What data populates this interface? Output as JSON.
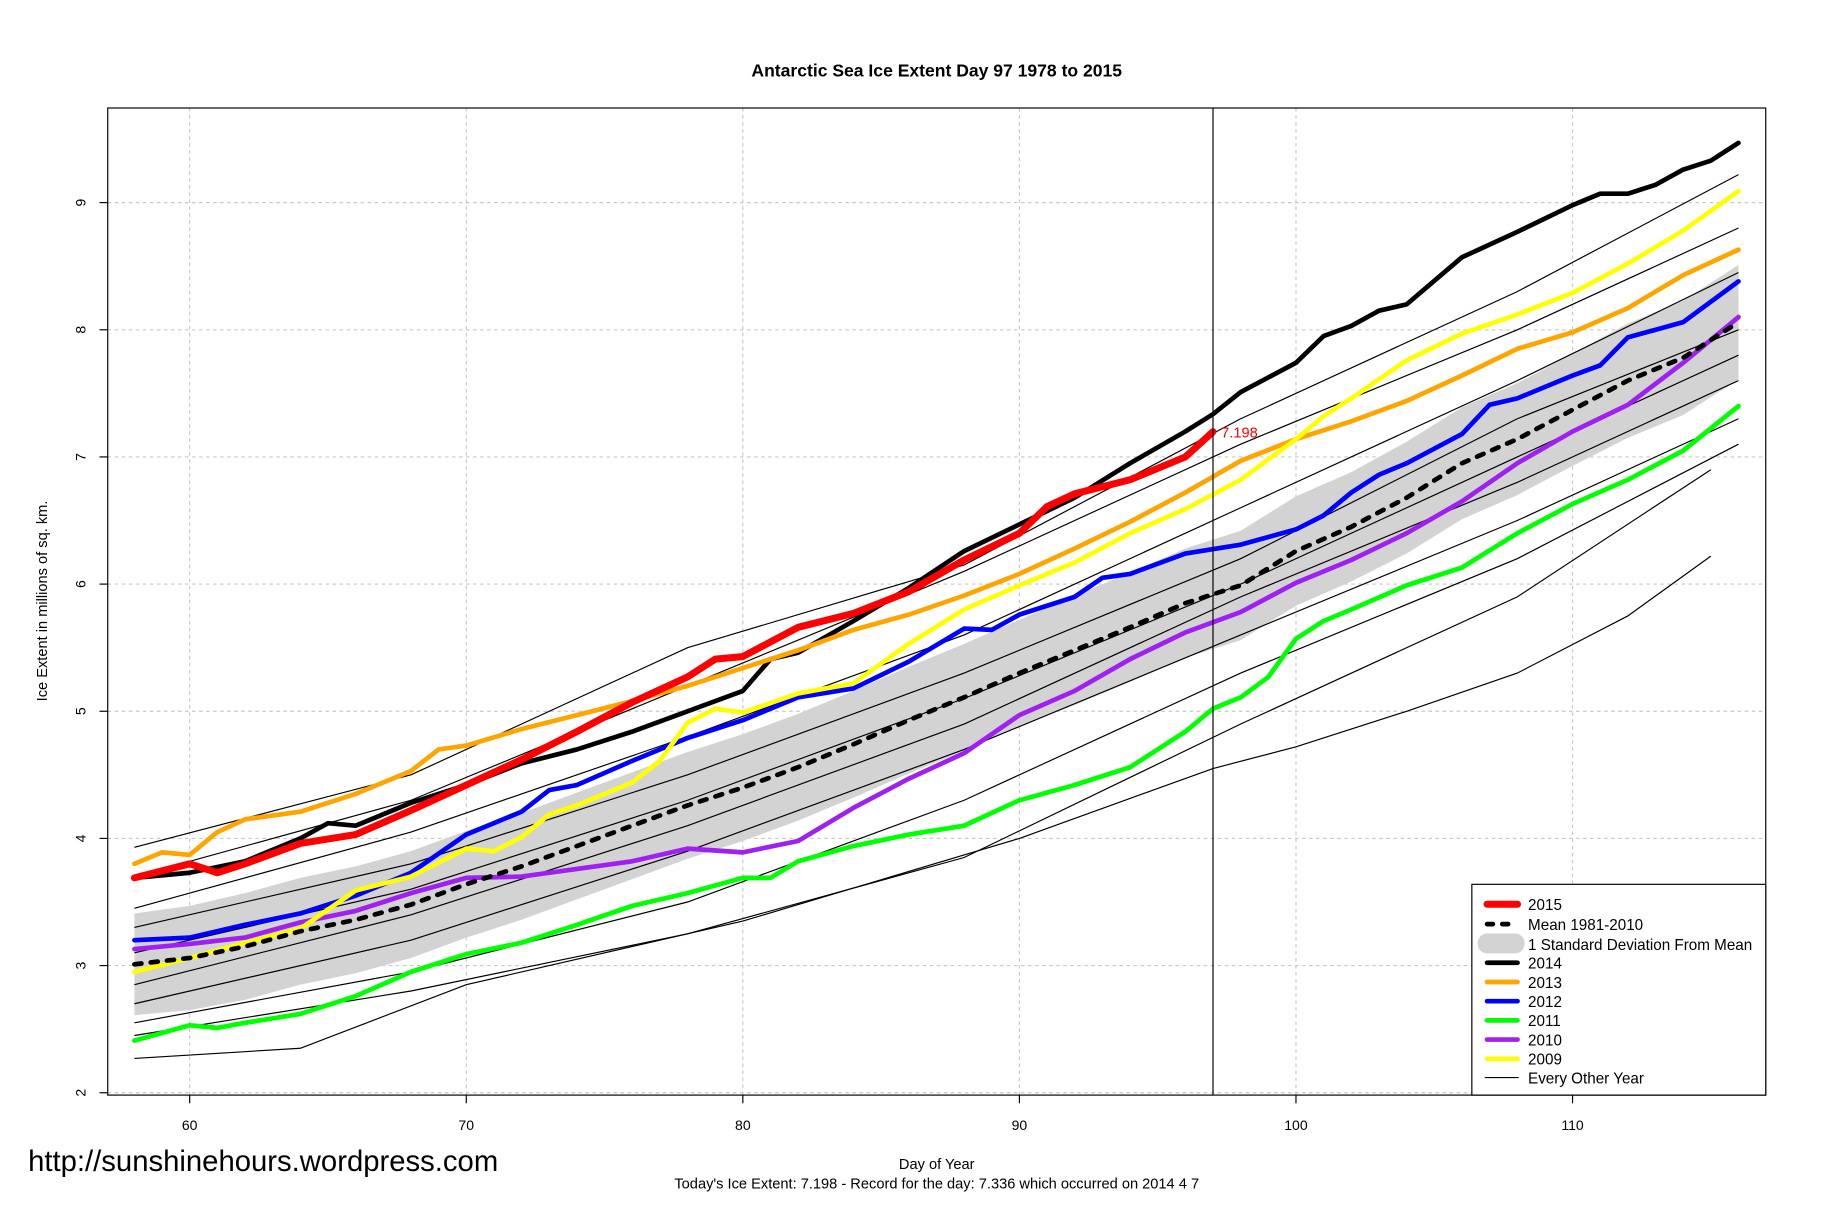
{
  "chart_data": {
    "type": "line",
    "title": "Antarctic Sea Ice Extent Day 97 1978 to 2015",
    "xlabel": "Day of Year",
    "ylabel": "Ice Extent in millions of sq. km.",
    "footnote": "Today's Ice Extent: 7.198  - Record for the day: 7.336 which occurred on 2014 4 7",
    "watermark": "http://sunshinehours.wordpress.com",
    "xlim": [
      57,
      117
    ],
    "ylim": [
      2,
      9.75
    ],
    "xticks": [
      60,
      70,
      80,
      90,
      100,
      110
    ],
    "yticks": [
      2,
      3,
      4,
      5,
      6,
      7,
      8,
      9
    ],
    "grid": true,
    "legend_position": "bottom-right",
    "current_day": 97,
    "current_value_label": "7.198",
    "mean": {
      "name": "Mean 1981-2010",
      "color": "#000000",
      "x": [
        58,
        60,
        62,
        64,
        66,
        68,
        70,
        72,
        74,
        76,
        78,
        80,
        82,
        84,
        86,
        88,
        90,
        92,
        94,
        96,
        98,
        100,
        102,
        104,
        106,
        108,
        110,
        112,
        114,
        116
      ],
      "y": [
        3.01,
        3.06,
        3.15,
        3.27,
        3.36,
        3.48,
        3.64,
        3.78,
        3.94,
        4.1,
        4.26,
        4.4,
        4.56,
        4.74,
        4.93,
        5.11,
        5.3,
        5.48,
        5.66,
        5.85,
        5.99,
        6.26,
        6.45,
        6.68,
        6.95,
        7.14,
        7.37,
        7.6,
        7.78,
        8.06
      ],
      "sd": [
        0.4,
        0.41,
        0.42,
        0.42,
        0.42,
        0.42,
        0.42,
        0.42,
        0.42,
        0.42,
        0.42,
        0.42,
        0.42,
        0.42,
        0.42,
        0.42,
        0.42,
        0.43,
        0.43,
        0.43,
        0.43,
        0.43,
        0.43,
        0.44,
        0.44,
        0.44,
        0.44,
        0.45,
        0.45,
        0.45
      ]
    },
    "sd_label": "1 Standard Deviation From Mean",
    "sd_color": "#d3d3d3",
    "series": [
      {
        "name": "2015",
        "color": "#ff0000",
        "width": 6,
        "x": [
          58,
          60,
          61,
          62,
          64,
          66,
          68,
          70,
          72,
          74,
          76,
          78,
          79,
          80,
          82,
          84,
          86,
          88,
          90,
          91,
          92,
          94,
          96,
          97
        ],
        "y": [
          3.69,
          3.8,
          3.73,
          3.8,
          3.96,
          4.03,
          4.22,
          4.42,
          4.62,
          4.84,
          5.07,
          5.27,
          5.41,
          5.43,
          5.66,
          5.77,
          5.94,
          6.19,
          6.4,
          6.61,
          6.71,
          6.82,
          7.0,
          7.198
        ]
      },
      {
        "name": "2014",
        "color": "#000000",
        "width": 4,
        "x": [
          58,
          60,
          62,
          64,
          65,
          66,
          68,
          70,
          72,
          74,
          76,
          78,
          80,
          81,
          82,
          84,
          86,
          88,
          90,
          92,
          94,
          96,
          97,
          98,
          100,
          101,
          102,
          103,
          104,
          106,
          108,
          110,
          111,
          112,
          113,
          114,
          115,
          116
        ],
        "y": [
          3.69,
          3.73,
          3.82,
          4.0,
          4.12,
          4.1,
          4.28,
          4.42,
          4.59,
          4.7,
          4.84,
          5.0,
          5.16,
          5.41,
          5.46,
          5.71,
          5.97,
          6.26,
          6.47,
          6.68,
          6.95,
          7.2,
          7.336,
          7.51,
          7.74,
          7.95,
          8.03,
          8.15,
          8.2,
          8.57,
          8.77,
          8.98,
          9.07,
          9.07,
          9.14,
          9.26,
          9.33,
          9.47
        ]
      },
      {
        "name": "2013",
        "color": "#ffa500",
        "width": 4,
        "x": [
          58,
          59,
          60,
          61,
          62,
          64,
          66,
          68,
          69,
          70,
          72,
          74,
          76,
          78,
          80,
          82,
          84,
          86,
          88,
          90,
          92,
          94,
          96,
          98,
          100,
          102,
          104,
          106,
          108,
          110,
          112,
          114,
          116
        ],
        "y": [
          3.8,
          3.89,
          3.87,
          4.05,
          4.15,
          4.21,
          4.35,
          4.53,
          4.7,
          4.73,
          4.86,
          4.97,
          5.08,
          5.2,
          5.34,
          5.48,
          5.64,
          5.76,
          5.91,
          6.08,
          6.28,
          6.49,
          6.72,
          6.97,
          7.14,
          7.28,
          7.44,
          7.64,
          7.85,
          7.98,
          8.17,
          8.43,
          8.63
        ]
      },
      {
        "name": "2012",
        "color": "#0000ff",
        "width": 4,
        "x": [
          58,
          60,
          62,
          64,
          66,
          68,
          70,
          72,
          73,
          74,
          76,
          78,
          80,
          82,
          84,
          86,
          88,
          89,
          90,
          92,
          93,
          94,
          96,
          98,
          100,
          101,
          102,
          103,
          104,
          106,
          107,
          108,
          110,
          111,
          112,
          114,
          116
        ],
        "y": [
          3.2,
          3.22,
          3.32,
          3.41,
          3.55,
          3.73,
          4.03,
          4.21,
          4.38,
          4.42,
          4.61,
          4.79,
          4.93,
          5.11,
          5.18,
          5.39,
          5.65,
          5.64,
          5.76,
          5.9,
          6.05,
          6.08,
          6.24,
          6.31,
          6.43,
          6.54,
          6.72,
          6.86,
          6.95,
          7.18,
          7.41,
          7.46,
          7.64,
          7.72,
          7.94,
          8.06,
          8.38
        ]
      },
      {
        "name": "2011",
        "color": "#00ff00",
        "width": 4,
        "x": [
          58,
          60,
          61,
          62,
          64,
          66,
          68,
          70,
          72,
          74,
          76,
          78,
          80,
          81,
          82,
          84,
          86,
          88,
          90,
          92,
          94,
          96,
          97,
          98,
          99,
          100,
          101,
          102,
          104,
          106,
          108,
          110,
          112,
          114,
          116
        ],
        "y": [
          2.41,
          2.53,
          2.51,
          2.55,
          2.62,
          2.76,
          2.95,
          3.09,
          3.18,
          3.32,
          3.47,
          3.57,
          3.69,
          3.69,
          3.82,
          3.94,
          4.03,
          4.1,
          4.3,
          4.42,
          4.56,
          4.84,
          5.02,
          5.11,
          5.27,
          5.57,
          5.71,
          5.8,
          5.99,
          6.13,
          6.4,
          6.63,
          6.82,
          7.05,
          7.4
        ]
      },
      {
        "name": "2010",
        "color": "#a020f0",
        "width": 4,
        "x": [
          58,
          60,
          62,
          64,
          66,
          68,
          70,
          72,
          74,
          76,
          78,
          80,
          82,
          84,
          86,
          88,
          90,
          92,
          94,
          96,
          98,
          100,
          102,
          104,
          106,
          108,
          110,
          112,
          114,
          116
        ],
        "y": [
          3.13,
          3.17,
          3.22,
          3.34,
          3.43,
          3.57,
          3.69,
          3.7,
          3.76,
          3.82,
          3.92,
          3.89,
          3.98,
          4.24,
          4.47,
          4.67,
          4.97,
          5.16,
          5.41,
          5.62,
          5.78,
          6.01,
          6.19,
          6.4,
          6.65,
          6.95,
          7.2,
          7.41,
          7.74,
          8.1
        ]
      },
      {
        "name": "2009",
        "color": "#ffff00",
        "width": 4,
        "x": [
          58,
          60,
          62,
          64,
          66,
          68,
          70,
          71,
          72,
          73,
          74,
          76,
          77,
          78,
          79,
          80,
          82,
          84,
          86,
          88,
          90,
          92,
          94,
          96,
          98,
          100,
          101,
          102,
          104,
          106,
          108,
          110,
          112,
          114,
          116
        ],
        "y": [
          2.95,
          3.06,
          3.18,
          3.29,
          3.59,
          3.7,
          3.92,
          3.9,
          4.01,
          4.19,
          4.26,
          4.44,
          4.61,
          4.91,
          5.02,
          4.99,
          5.14,
          5.22,
          5.53,
          5.8,
          5.99,
          6.17,
          6.4,
          6.59,
          6.82,
          7.14,
          7.32,
          7.46,
          7.76,
          7.97,
          8.12,
          8.29,
          8.52,
          8.78,
          9.09
        ]
      }
    ],
    "other_years": {
      "name": "Every Other Year",
      "color": "#000000",
      "lines": [
        {
          "x": [
            58,
            68,
            78,
            88,
            98,
            108,
            116
          ],
          "y": [
            3.93,
            4.5,
            5.5,
            6.15,
            7.3,
            8.3,
            9.22
          ]
        },
        {
          "x": [
            58,
            68,
            78,
            88,
            98,
            108,
            116
          ],
          "y": [
            3.7,
            4.3,
            5.2,
            6.1,
            7.1,
            8.0,
            8.8
          ]
        },
        {
          "x": [
            58,
            68,
            78,
            88,
            98,
            108,
            116
          ],
          "y": [
            3.45,
            4.05,
            4.8,
            5.6,
            6.6,
            7.6,
            8.45
          ]
        },
        {
          "x": [
            58,
            68,
            78,
            88,
            98,
            108,
            116
          ],
          "y": [
            3.3,
            3.8,
            4.5,
            5.3,
            6.2,
            7.3,
            8.0
          ]
        },
        {
          "x": [
            58,
            68,
            78,
            88,
            98,
            108,
            116
          ],
          "y": [
            3.1,
            3.6,
            4.3,
            5.1,
            6.0,
            7.0,
            7.8
          ]
        },
        {
          "x": [
            58,
            68,
            78,
            88,
            98,
            108,
            116
          ],
          "y": [
            2.85,
            3.4,
            4.1,
            4.9,
            5.9,
            6.8,
            7.6
          ]
        },
        {
          "x": [
            58,
            68,
            78,
            88,
            98,
            108,
            116
          ],
          "y": [
            2.7,
            3.2,
            3.9,
            4.7,
            5.6,
            6.5,
            7.3
          ]
        },
        {
          "x": [
            58,
            68,
            78,
            88,
            98,
            108,
            116
          ],
          "y": [
            2.55,
            2.95,
            3.5,
            4.3,
            5.3,
            6.2,
            7.1
          ]
        },
        {
          "x": [
            58,
            68,
            78,
            88,
            98,
            108,
            115
          ],
          "y": [
            2.45,
            2.8,
            3.25,
            3.85,
            4.9,
            5.9,
            6.9
          ]
        },
        {
          "x": [
            58,
            64,
            70,
            80,
            90,
            97,
            100,
            104,
            108,
            112,
            115
          ],
          "y": [
            2.27,
            2.35,
            2.85,
            3.35,
            4.0,
            4.55,
            4.72,
            5.0,
            5.3,
            5.75,
            6.22
          ]
        }
      ]
    }
  }
}
